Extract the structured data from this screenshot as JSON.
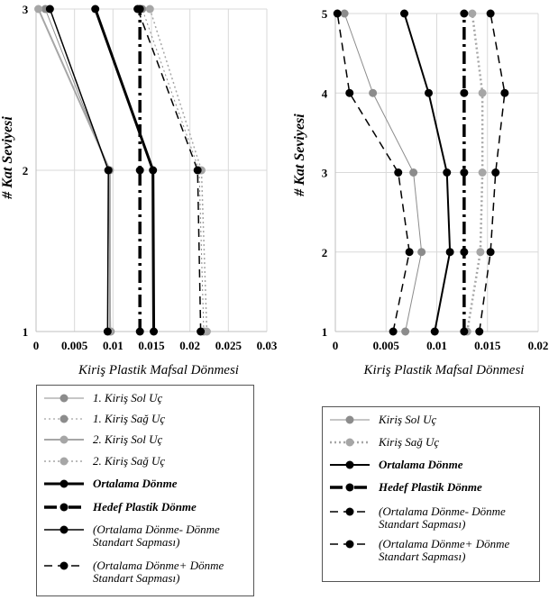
{
  "chart_data": [
    {
      "type": "line",
      "orientation": "horizontal-profile",
      "xlabel": "Kiriş Plastik Mafsal Dönmesi",
      "ylabel": "# Kat Seviyesi",
      "xlim": [
        0,
        0.03
      ],
      "ylim": [
        1,
        3
      ],
      "x_ticks": [
        "0",
        "0.005",
        "0.01",
        "0.015",
        "0.02",
        "0.025",
        "0.03"
      ],
      "y_ticks": [
        "1",
        "2",
        "3"
      ],
      "grid": true,
      "y": [
        1,
        2,
        3
      ],
      "series": [
        {
          "name": "1. Kiriş Sol Uç",
          "x": [
            0.0097,
            0.0094,
            0.0012
          ],
          "color": "#8c8c8c",
          "dash": "solid",
          "width": 1,
          "marker": "#8c8c8c",
          "bold": false
        },
        {
          "name": "1. Kiriş Sağ Uç",
          "x": [
            0.0218,
            0.0212,
            0.0138
          ],
          "color": "#8c8c8c",
          "dash": "dot",
          "width": 1,
          "marker": "#8c8c8c",
          "bold": false
        },
        {
          "name": "2. Kiriş Sol Uç",
          "x": [
            0.0096,
            0.0096,
            0.0003
          ],
          "color": "#a6a6a6",
          "dash": "solid",
          "width": 2,
          "marker": "#a6a6a6",
          "bold": false
        },
        {
          "name": "2. Kiriş Sağ Uç",
          "x": [
            0.0222,
            0.0215,
            0.0148
          ],
          "color": "#a6a6a6",
          "dash": "dot",
          "width": 1.5,
          "marker": "#a6a6a6",
          "bold": false
        },
        {
          "name": "Ortalama Dönme",
          "x": [
            0.0153,
            0.0152,
            0.0077
          ],
          "color": "#000000",
          "dash": "solid",
          "width": 3,
          "marker": "#000000",
          "bold": true
        },
        {
          "name": "Hedef Plastik Dönme",
          "x": [
            0.0135,
            0.0135,
            0.0135
          ],
          "color": "#000000",
          "dash": "dashdot",
          "width": 3.5,
          "marker": "#000000",
          "bold": true
        },
        {
          "name": "(Ortalama Dönme- Dönme Standart Sapması)",
          "x": [
            0.0093,
            0.0094,
            0.0018
          ],
          "color": "#000000",
          "dash": "solid",
          "width": 1.5,
          "marker": "#000000",
          "bold": false
        },
        {
          "name": "(Ortalama Dönme+ Dönme Standart Sapması)",
          "x": [
            0.0214,
            0.021,
            0.0132
          ],
          "color": "#000000",
          "dash": "dash",
          "width": 1.5,
          "marker": "#000000",
          "bold": false
        }
      ]
    },
    {
      "type": "line",
      "orientation": "horizontal-profile",
      "xlabel": "Kiriş Plastik Mafsal Dönmesi",
      "ylabel": "# Kat Seviyesi",
      "xlim": [
        0,
        0.02
      ],
      "ylim": [
        1,
        5
      ],
      "x_ticks": [
        "0",
        "0.005",
        "0.01",
        "0.015",
        "0.02"
      ],
      "y_ticks": [
        "1",
        "2",
        "3",
        "4",
        "5"
      ],
      "grid": true,
      "y": [
        1,
        2,
        3,
        4,
        5
      ],
      "series": [
        {
          "name": "Kiriş Sol Uç",
          "x": [
            0.0069,
            0.0085,
            0.0077,
            0.0037,
            0.0009
          ],
          "color": "#8c8c8c",
          "dash": "solid",
          "width": 1,
          "marker": "#8c8c8c",
          "bold": false
        },
        {
          "name": "Kiriş Sağ Uç",
          "x": [
            0.013,
            0.0143,
            0.0145,
            0.0145,
            0.0135
          ],
          "color": "#a6a6a6",
          "dash": "dot",
          "width": 2.5,
          "marker": "#a6a6a6",
          "bold": false
        },
        {
          "name": "Ortalama Dönme",
          "x": [
            0.0098,
            0.0113,
            0.011,
            0.0092,
            0.0068
          ],
          "color": "#000000",
          "dash": "solid",
          "width": 2,
          "marker": "#000000",
          "bold": true
        },
        {
          "name": "Hedef Plastik Dönme",
          "x": [
            0.0127,
            0.0127,
            0.0127,
            0.0127,
            0.0127
          ],
          "color": "#000000",
          "dash": "dashdot",
          "width": 3.5,
          "marker": "#000000",
          "bold": true
        },
        {
          "name": "(Ortalama Dönme- Dönme Standart Sapması)",
          "x": [
            0.0057,
            0.0073,
            0.0062,
            0.0014,
            0.0002
          ],
          "color": "#000000",
          "dash": "dash",
          "width": 1.5,
          "marker": "#000000",
          "bold": false
        },
        {
          "name": "(Ortalama Dönme+ Dönme Standart Sapması)",
          "x": [
            0.0142,
            0.0153,
            0.0158,
            0.0167,
            0.0153
          ],
          "color": "#000000",
          "dash": "dash",
          "width": 1.5,
          "marker": "#000000",
          "bold": false
        }
      ]
    }
  ]
}
